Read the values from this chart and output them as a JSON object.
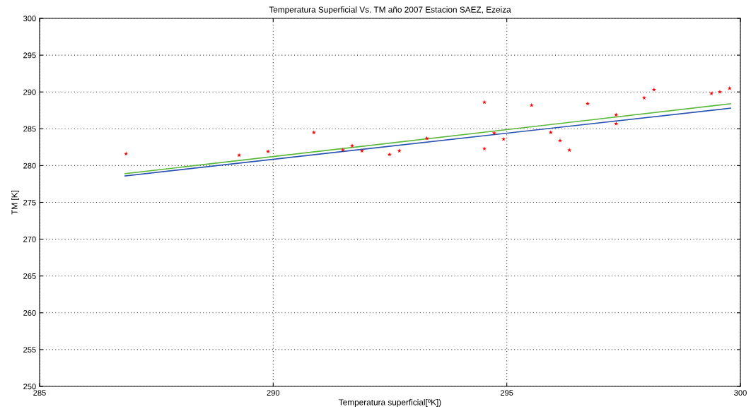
{
  "chart_data": {
    "type": "scatter",
    "title": "Temperatura Superficial Vs. TM año 2007 Estacion SAEZ, Ezeiza",
    "xlabel": "Temperatura superficial[ºK])",
    "ylabel": "TM [K]",
    "xlim": [
      285,
      300
    ],
    "xticks": [
      285,
      290,
      295,
      300
    ],
    "ylim": [
      250,
      300
    ],
    "yticks": [
      250,
      255,
      260,
      265,
      270,
      275,
      280,
      285,
      290,
      295,
      300
    ],
    "grid": true,
    "series": [
      {
        "color": "#ff0000",
        "marker": "star",
        "x": [
          286.85,
          289.27,
          289.89,
          290.87,
          291.49,
          291.69,
          291.9,
          292.49,
          292.7,
          293.29,
          294.52,
          294.52,
          294.73,
          294.93,
          295.53,
          295.94,
          296.14,
          296.34,
          296.73,
          297.34,
          297.34,
          297.94,
          298.15,
          299.38,
          299.56,
          299.77
        ],
        "values": [
          281.6,
          281.4,
          281.9,
          284.5,
          282.1,
          282.7,
          282.0,
          281.5,
          282.0,
          283.7,
          288.6,
          282.3,
          284.4,
          283.6,
          288.2,
          284.5,
          283.4,
          282.1,
          288.4,
          285.7,
          286.9,
          289.2,
          290.3,
          289.8,
          290.0,
          290.5
        ]
      },
      {
        "type": "line",
        "color": "#5cb83c",
        "line_style": "solid",
        "x": [
          286.83,
          299.79
        ],
        "values": [
          278.9,
          288.4
        ]
      },
      {
        "type": "line",
        "color": "#2a52b0",
        "line_style": "solid",
        "x": [
          286.83,
          299.79
        ],
        "values": [
          278.6,
          287.8
        ]
      }
    ]
  }
}
